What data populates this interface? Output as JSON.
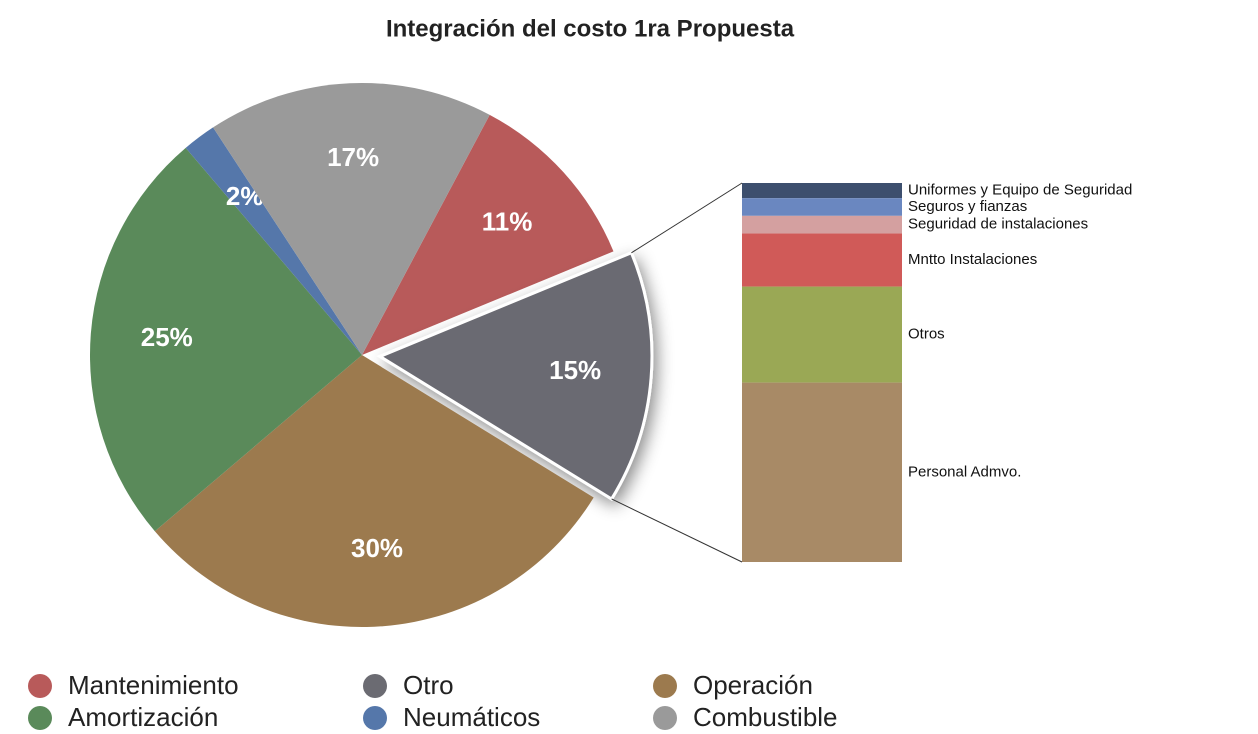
{
  "chart_data": [
    {
      "type": "pie",
      "title": "Integración del costo 1ra Propuesta",
      "categories": [
        "Mantenimiento",
        "Otro",
        "Operación",
        "Amortización",
        "Neumáticos",
        "Combustible"
      ],
      "values": [
        11,
        15,
        30,
        25,
        2,
        17
      ],
      "value_labels": [
        "11%",
        "15%",
        "30%",
        "25%",
        "2%",
        "17%"
      ],
      "colors": [
        "#b85a5a",
        "#6b6b72",
        "#9c7a4e",
        "#5a8a5a",
        "#5577aa",
        "#9a9a9a"
      ],
      "exploded": "Otro"
    },
    {
      "type": "bar",
      "stacked": true,
      "series": [
        {
          "name": "Uniformes  y Equipo de Seguridad",
          "color": "#3d4f6e",
          "values": [
            0.6
          ]
        },
        {
          "name": "Seguros y fianzas",
          "color": "#6a87c0",
          "values": [
            0.7
          ]
        },
        {
          "name": "Seguridad de instalaciones",
          "color": "#d4a0a0",
          "values": [
            0.7
          ]
        },
        {
          "name": "Mntto Instalaciones",
          "color": "#d05a58",
          "values": [
            2.1
          ]
        },
        {
          "name": "Otros",
          "color": "#9aa855",
          "values": [
            3.8
          ]
        },
        {
          "name": "Personal Admvo.",
          "color": "#a88a66",
          "values": [
            7.1
          ]
        }
      ]
    }
  ]
}
